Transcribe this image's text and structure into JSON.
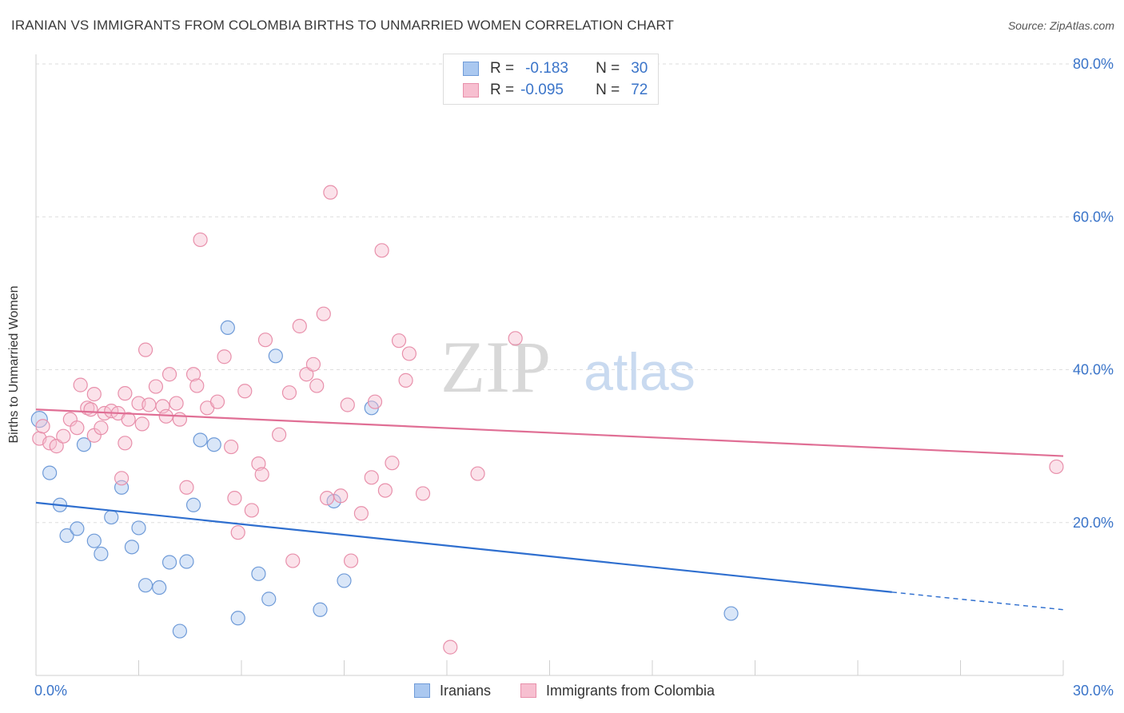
{
  "header": {
    "title": "IRANIAN VS IMMIGRANTS FROM COLOMBIA BIRTHS TO UNMARRIED WOMEN CORRELATION CHART",
    "source": "Source: ZipAtlas.com"
  },
  "watermark": {
    "zip": "ZIP",
    "atlas": "atlas"
  },
  "stats_box": {
    "rows": [
      {
        "r_label": "R =",
        "r_value": "-0.183",
        "n_label": "N =",
        "n_value": "30",
        "fill": "#aac8f0",
        "stroke": "#6f9bd8"
      },
      {
        "r_label": "R =",
        "r_value": "-0.095",
        "n_label": "N =",
        "n_value": "72",
        "fill": "#f7bfd0",
        "stroke": "#e890ab"
      }
    ]
  },
  "legend": {
    "items": [
      {
        "label": "Iranians",
        "fill": "#aac8f0",
        "stroke": "#6f9bd8"
      },
      {
        "label": "Immigrants from Colombia",
        "fill": "#f7bfd0",
        "stroke": "#e890ab"
      }
    ]
  },
  "chart_data": {
    "type": "scatter",
    "title": "IRANIAN VS IMMIGRANTS FROM COLOMBIA BIRTHS TO UNMARRIED WOMEN CORRELATION CHART",
    "xlabel": "",
    "ylabel": "Births to Unmarried Women",
    "xlim": [
      0,
      30
    ],
    "ylim": [
      0,
      80
    ],
    "x_tick_labels": [
      "0.0%",
      "30.0%"
    ],
    "y_ticks": [
      20,
      40,
      60,
      80
    ],
    "y_tick_labels": [
      "20.0%",
      "40.0%",
      "60.0%",
      "80.0%"
    ],
    "grid": true,
    "colors": {
      "axis_text": "#3a74c9",
      "grid": "#dedede"
    },
    "series": [
      {
        "name": "Iranians",
        "color": "#6f9bd8",
        "line_color": "#2f6fcf",
        "points": [
          [
            0.1,
            33.5
          ],
          [
            0.4,
            26.5
          ],
          [
            0.7,
            22.3
          ],
          [
            0.9,
            18.3
          ],
          [
            1.2,
            19.2
          ],
          [
            1.4,
            30.2
          ],
          [
            1.7,
            17.6
          ],
          [
            1.9,
            15.9
          ],
          [
            2.2,
            20.7
          ],
          [
            2.5,
            24.6
          ],
          [
            2.8,
            16.8
          ],
          [
            3.0,
            19.3
          ],
          [
            3.2,
            11.8
          ],
          [
            3.6,
            11.5
          ],
          [
            3.9,
            14.8
          ],
          [
            4.2,
            5.8
          ],
          [
            4.4,
            14.9
          ],
          [
            4.6,
            22.3
          ],
          [
            4.8,
            30.8
          ],
          [
            5.2,
            30.2
          ],
          [
            5.6,
            45.5
          ],
          [
            5.9,
            7.5
          ],
          [
            6.5,
            13.3
          ],
          [
            6.8,
            10.0
          ],
          [
            7.0,
            41.8
          ],
          [
            8.3,
            8.6
          ],
          [
            8.7,
            22.8
          ],
          [
            9.0,
            12.4
          ],
          [
            9.8,
            35.0
          ],
          [
            20.3,
            8.1
          ]
        ],
        "trend": {
          "x": [
            0,
            25.0
          ],
          "y": [
            22.6,
            10.9
          ]
        },
        "trend_extension": {
          "x": [
            25.0,
            30
          ],
          "y": [
            10.9,
            8.6
          ]
        },
        "r": -0.183,
        "n": 30
      },
      {
        "name": "Immigrants from Colombia",
        "color": "#e890ab",
        "line_color": "#e06f95",
        "points": [
          [
            0.1,
            31.0
          ],
          [
            0.4,
            30.4
          ],
          [
            0.6,
            30.0
          ],
          [
            0.8,
            31.3
          ],
          [
            1.0,
            33.5
          ],
          [
            1.2,
            32.4
          ],
          [
            1.3,
            38.0
          ],
          [
            1.5,
            35.0
          ],
          [
            1.7,
            31.4
          ],
          [
            1.7,
            36.8
          ],
          [
            1.9,
            32.4
          ],
          [
            2.0,
            34.3
          ],
          [
            2.2,
            34.6
          ],
          [
            2.4,
            34.3
          ],
          [
            2.5,
            25.8
          ],
          [
            2.6,
            36.9
          ],
          [
            2.7,
            33.5
          ],
          [
            3.0,
            35.6
          ],
          [
            3.1,
            32.9
          ],
          [
            3.2,
            42.6
          ],
          [
            3.3,
            35.4
          ],
          [
            3.5,
            37.8
          ],
          [
            3.7,
            35.2
          ],
          [
            3.8,
            33.9
          ],
          [
            3.9,
            39.4
          ],
          [
            4.1,
            35.6
          ],
          [
            4.2,
            33.5
          ],
          [
            4.4,
            24.6
          ],
          [
            4.6,
            39.4
          ],
          [
            4.7,
            37.9
          ],
          [
            4.8,
            57.0
          ],
          [
            5.0,
            35.0
          ],
          [
            5.3,
            35.8
          ],
          [
            5.5,
            41.7
          ],
          [
            5.7,
            29.9
          ],
          [
            5.8,
            23.2
          ],
          [
            5.9,
            18.7
          ],
          [
            6.1,
            37.2
          ],
          [
            6.3,
            21.6
          ],
          [
            6.5,
            27.7
          ],
          [
            6.6,
            26.3
          ],
          [
            6.7,
            43.9
          ],
          [
            7.1,
            31.5
          ],
          [
            7.4,
            37.0
          ],
          [
            7.5,
            15.0
          ],
          [
            7.7,
            45.7
          ],
          [
            7.9,
            39.4
          ],
          [
            8.1,
            40.7
          ],
          [
            8.2,
            37.9
          ],
          [
            8.4,
            47.3
          ],
          [
            8.5,
            23.2
          ],
          [
            8.6,
            63.2
          ],
          [
            8.9,
            23.5
          ],
          [
            9.1,
            35.4
          ],
          [
            9.2,
            15.0
          ],
          [
            9.5,
            21.2
          ],
          [
            9.8,
            25.9
          ],
          [
            9.9,
            35.8
          ],
          [
            10.1,
            55.6
          ],
          [
            10.2,
            24.2
          ],
          [
            10.4,
            27.8
          ],
          [
            10.6,
            43.8
          ],
          [
            10.8,
            38.6
          ],
          [
            10.9,
            42.1
          ],
          [
            11.3,
            23.8
          ],
          [
            12.1,
            3.7
          ],
          [
            12.9,
            26.4
          ],
          [
            14.0,
            44.1
          ],
          [
            29.8,
            27.3
          ],
          [
            0.2,
            32.6
          ],
          [
            1.6,
            34.8
          ],
          [
            2.6,
            30.4
          ]
        ],
        "trend": {
          "x": [
            0,
            30
          ],
          "y": [
            34.8,
            28.7
          ]
        },
        "r": -0.095,
        "n": 72
      }
    ]
  }
}
